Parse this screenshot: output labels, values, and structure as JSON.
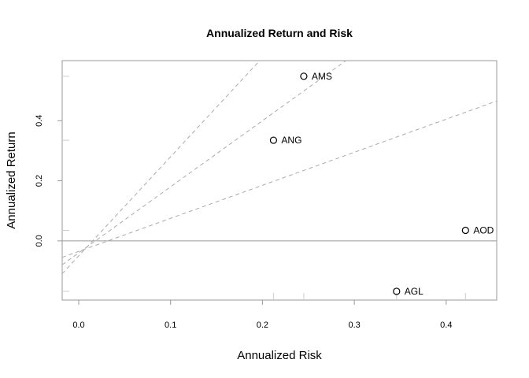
{
  "chart_data": {
    "type": "scatter",
    "title": "Annualized Return and Risk",
    "xlabel": "Annualized Risk",
    "ylabel": "Annualized Return",
    "xlim": [
      -0.018,
      0.455
    ],
    "ylim": [
      -0.197,
      0.6
    ],
    "xticks": [
      0.0,
      0.1,
      0.2,
      0.3,
      0.4
    ],
    "xtick_labels": [
      "0.0",
      "0.1",
      "0.2",
      "0.3",
      "0.4"
    ],
    "yticks": [
      0.0,
      0.2,
      0.4
    ],
    "ytick_labels": [
      "0.0",
      "0.2",
      "0.4"
    ],
    "grid": false,
    "points": [
      {
        "label": "AMS",
        "x": 0.245,
        "y": 0.548
      },
      {
        "label": "ANG",
        "x": 0.212,
        "y": 0.335
      },
      {
        "label": "AOD",
        "x": 0.421,
        "y": 0.035
      },
      {
        "label": "AGL",
        "x": 0.346,
        "y": -0.168
      }
    ],
    "reference_lines": [
      {
        "intercept": -0.035,
        "slope": 1.1
      },
      {
        "intercept": -0.04,
        "slope": 2.2
      },
      {
        "intercept": -0.05,
        "slope": 3.3
      }
    ],
    "hline_y": 0,
    "rug_x": [
      0.212,
      0.245,
      0.346,
      0.421
    ],
    "rug_y": [
      0.548,
      0.335,
      0.035,
      -0.168
    ],
    "colors": {
      "reference_line": "#aaaaaa",
      "frame": "#999999",
      "zero_line": "#999999",
      "point": "#000000"
    }
  }
}
